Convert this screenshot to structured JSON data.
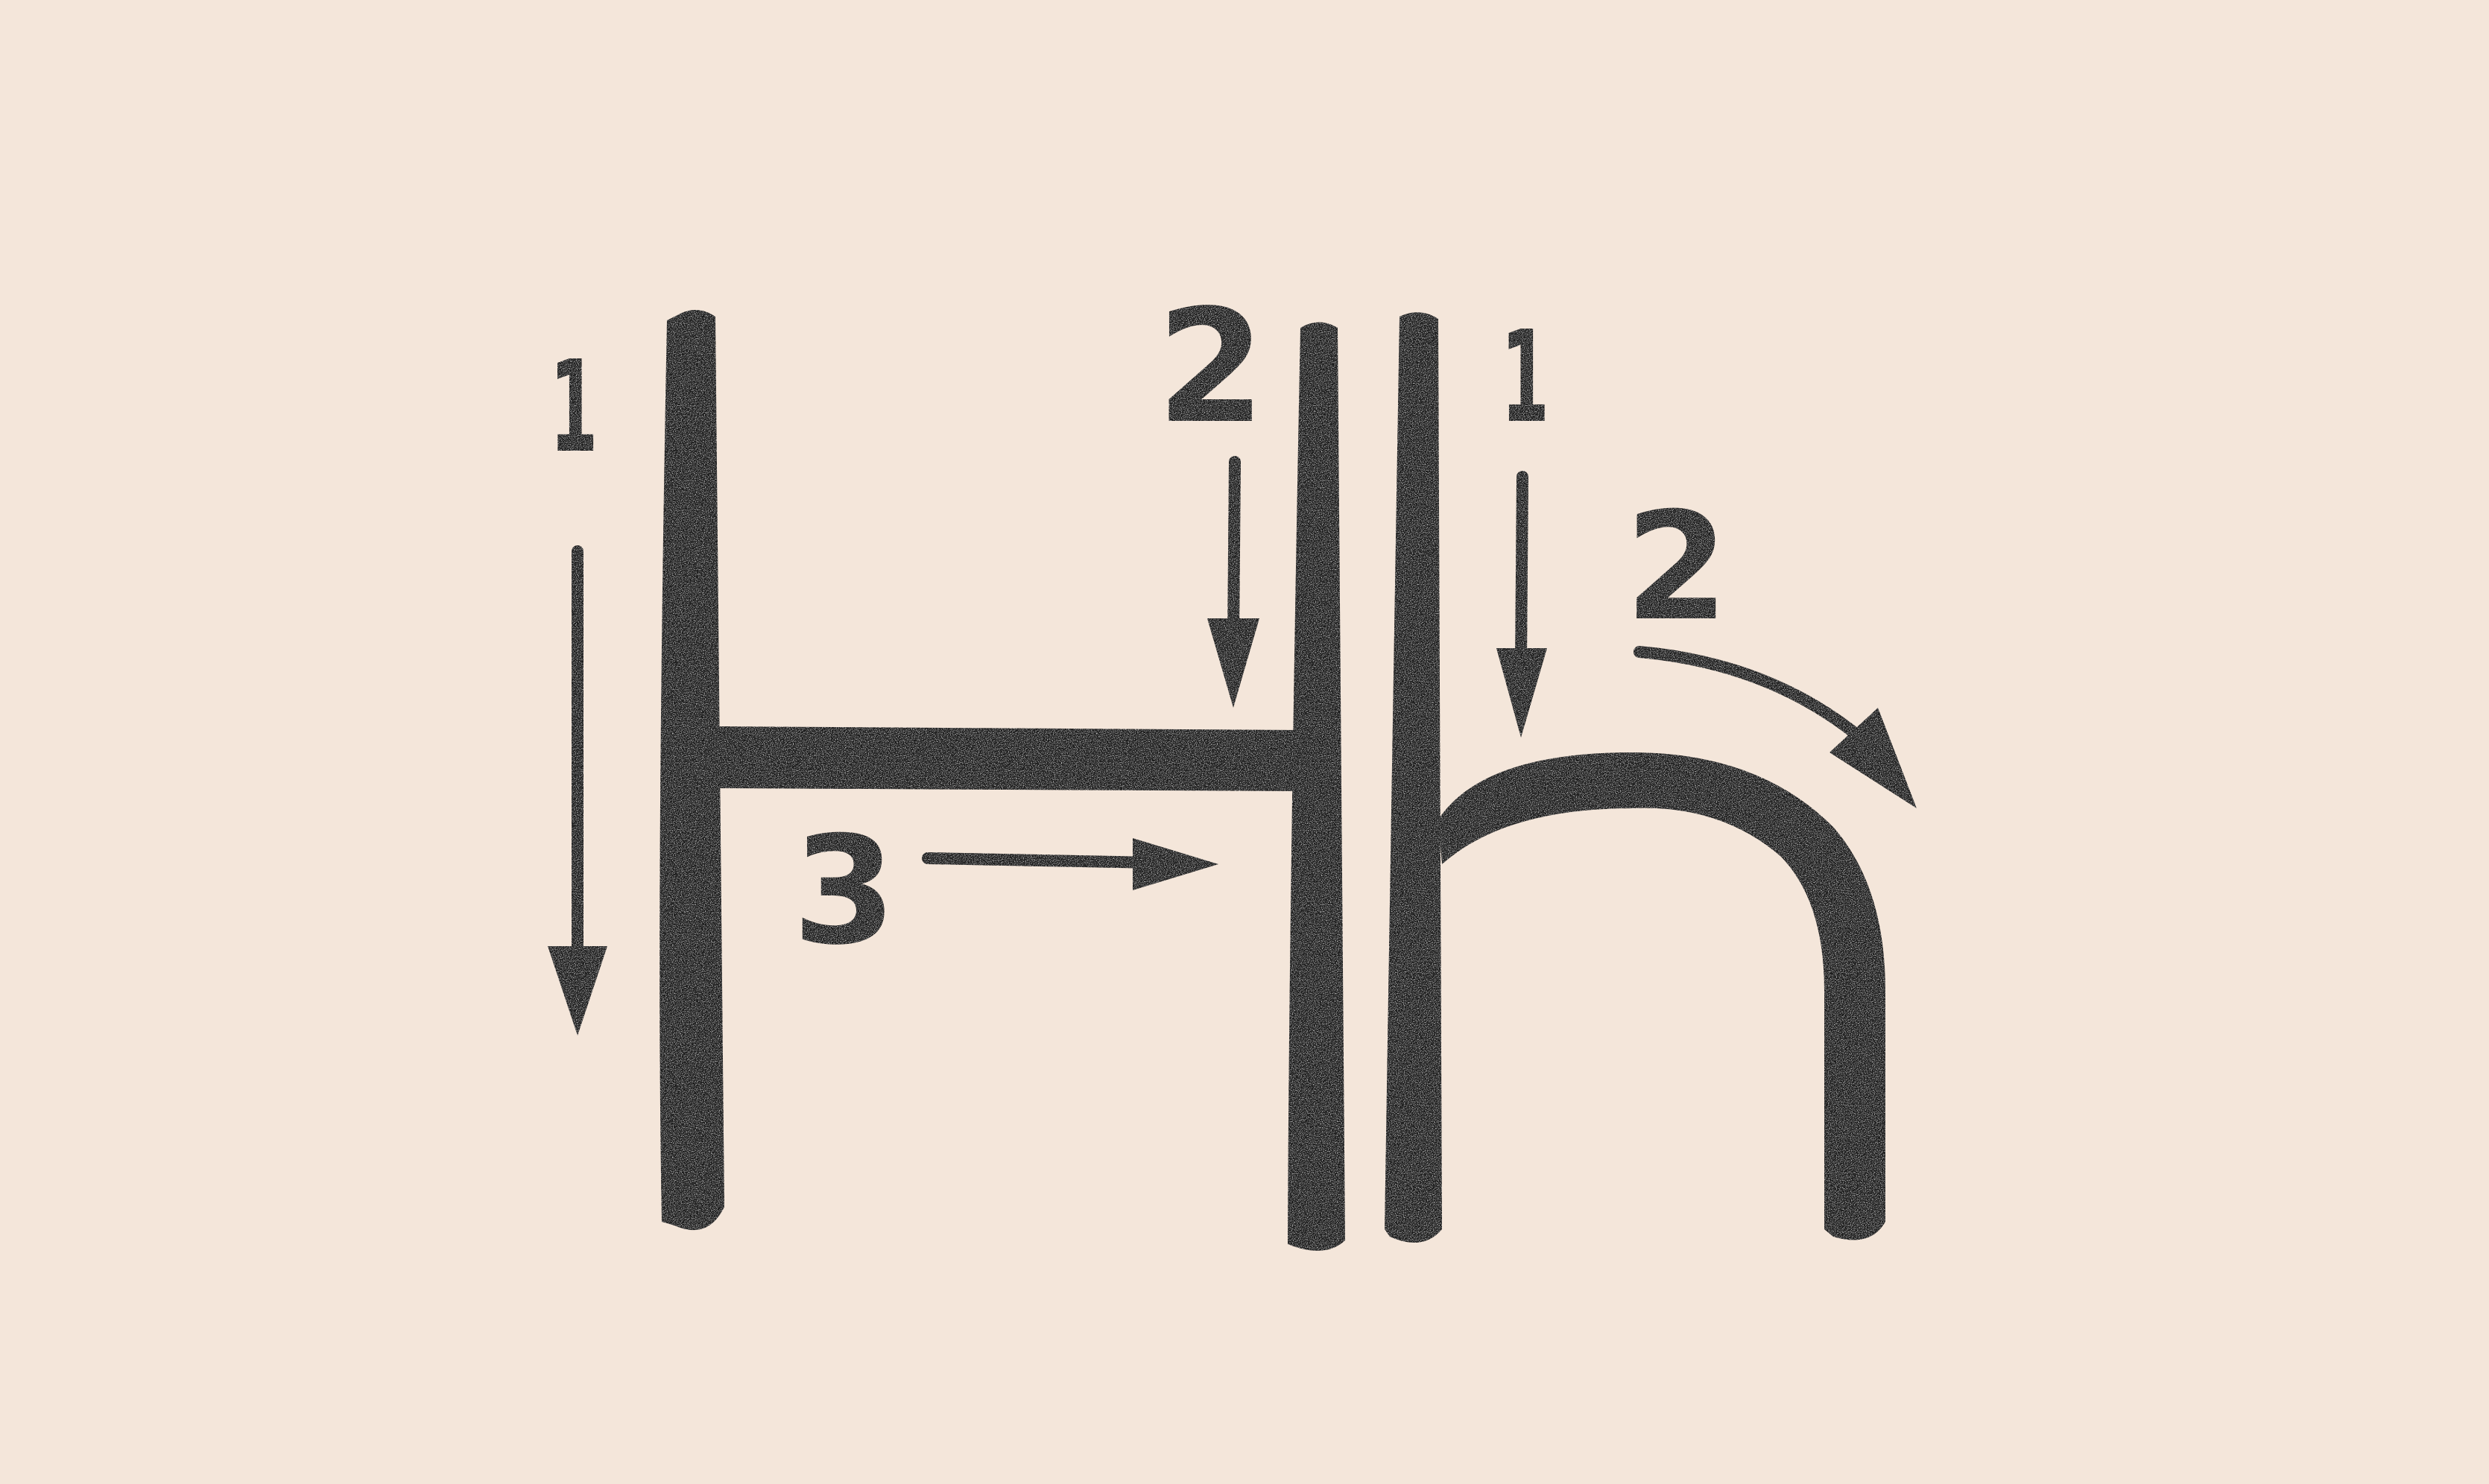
{
  "background_color": "#f4e6da",
  "ink_color": "#1c1c1c",
  "letters": [
    {
      "glyph": "H",
      "strokes": [
        {
          "order": "1",
          "direction": "down",
          "icon": "arrow-down-icon"
        },
        {
          "order": "2",
          "direction": "down",
          "icon": "arrow-down-icon"
        },
        {
          "order": "3",
          "direction": "right",
          "icon": "arrow-right-icon"
        }
      ]
    },
    {
      "glyph": "h",
      "strokes": [
        {
          "order": "1",
          "direction": "down",
          "icon": "arrow-down-icon"
        },
        {
          "order": "2",
          "direction": "curve-right-down",
          "icon": "arrow-curved-icon"
        }
      ]
    }
  ]
}
